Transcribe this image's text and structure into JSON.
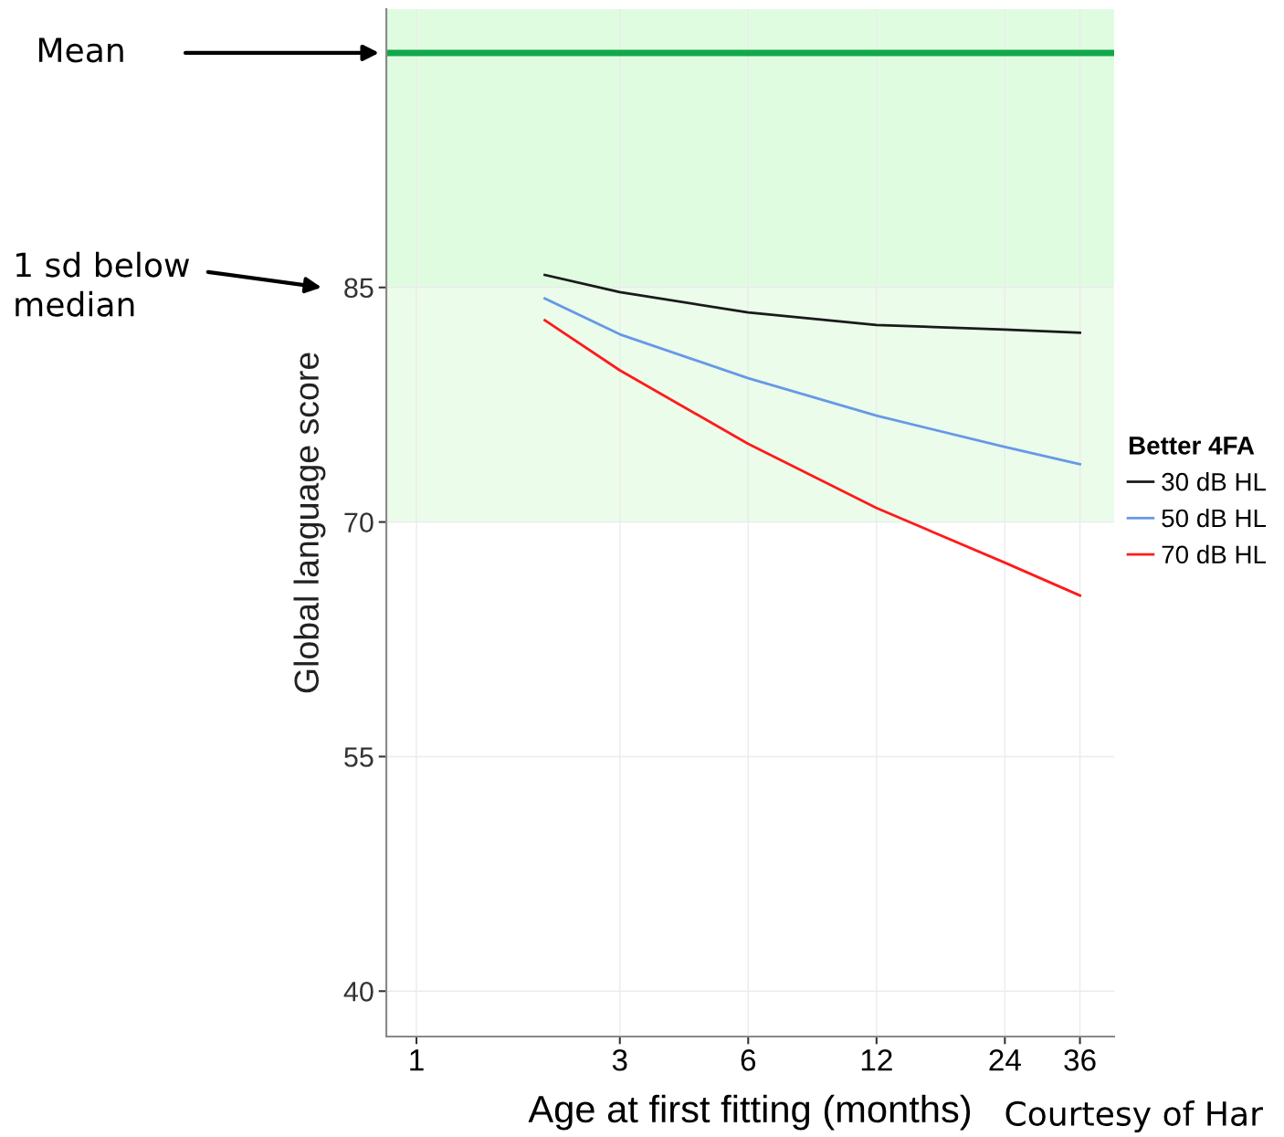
{
  "chart_data": {
    "type": "line",
    "xlabel": "Age at first fitting (months)",
    "ylabel": "Global language score",
    "legend_title": "Better 4FA",
    "legend": "right",
    "log": "x",
    "grid": true,
    "marker": "none",
    "line_style": "solid",
    "xlim": [
      0.85,
      43.3
    ],
    "xticks": [
      1,
      3,
      6,
      12,
      24,
      36
    ],
    "ylim": [
      37.1,
      102.8
    ],
    "yticks": [
      40,
      55,
      70,
      85
    ],
    "x": [
      2,
      3,
      6,
      12,
      24,
      36
    ],
    "series": [
      {
        "name": "30 dB HL",
        "color": "#1a1a1a",
        "values": [
          85.8,
          84.7,
          83.4,
          82.6,
          82.3,
          82.1
        ]
      },
      {
        "name": "50 dB HL",
        "color": "#6699e6",
        "values": [
          84.3,
          82.0,
          79.2,
          76.8,
          74.8,
          73.7
        ]
      },
      {
        "name": "70 dB HL",
        "color": "#ff1a1a",
        "values": [
          82.9,
          79.7,
          75.0,
          70.9,
          67.4,
          65.3
        ]
      }
    ],
    "bands": [
      {
        "axis": "y",
        "from": 70,
        "to": 85,
        "color": "#ebfceb"
      },
      {
        "axis": "y",
        "from": 85,
        "to": 102.8,
        "color": "#e0fce0"
      }
    ],
    "ref_lines": [
      {
        "axis": "y",
        "value": 100,
        "color": "#11a84a"
      }
    ],
    "annotations": [
      "Mean",
      "1 sd below\nmedian",
      "Courtesy of Har"
    ]
  }
}
